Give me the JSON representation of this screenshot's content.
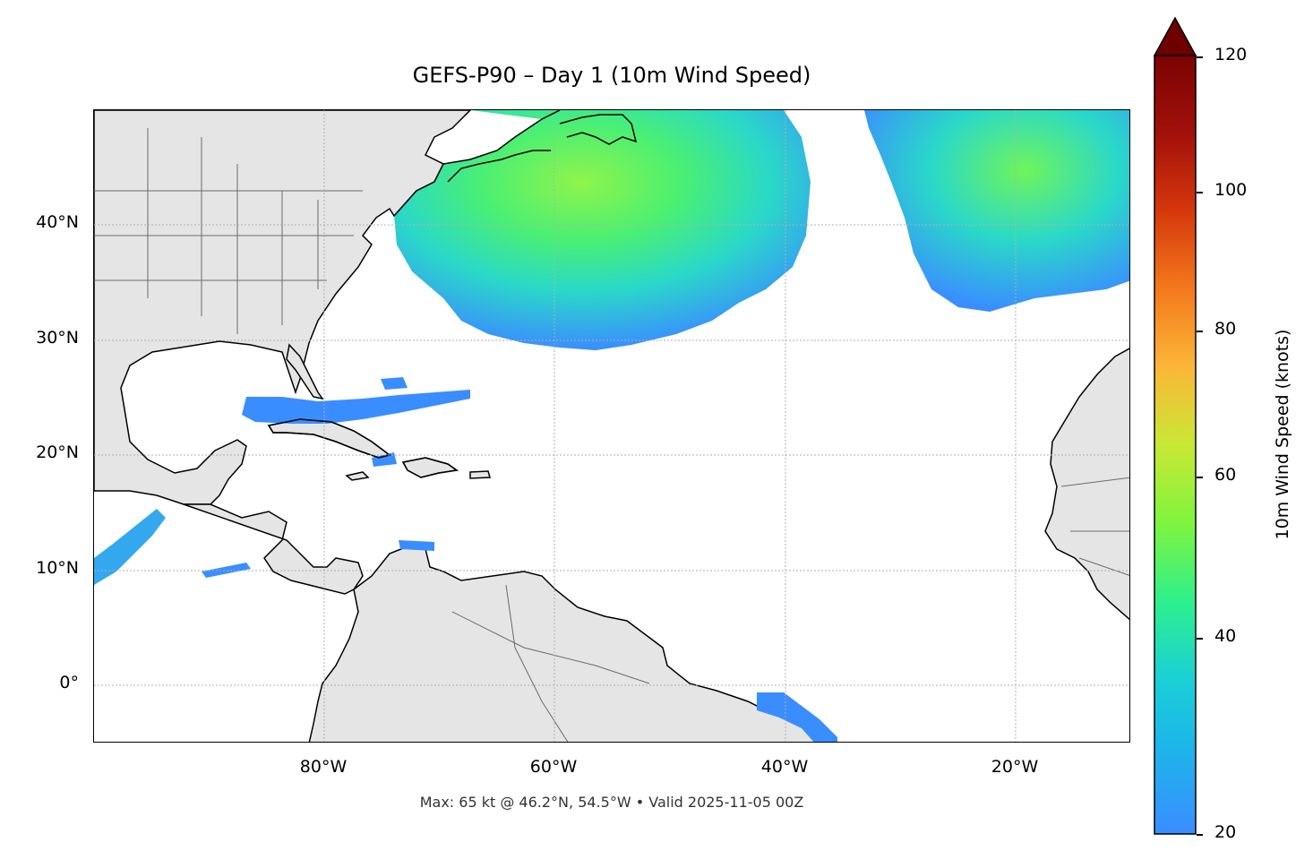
{
  "title": "GEFS-P90 – Day 1 (10m Wind Speed)",
  "footer": "Max: 65 kt @ 46.2°N, 54.5°W • Valid 2025-11-05 00Z",
  "axes": {
    "lat_ticks": [
      "40°N",
      "30°N",
      "20°N",
      "10°N",
      "0°"
    ],
    "lon_ticks": [
      "80°W",
      "60°W",
      "40°W",
      "20°W"
    ],
    "lon_range": [
      -100,
      -10
    ],
    "lat_range": [
      -5,
      50
    ],
    "gridlines": true
  },
  "colorbar": {
    "label": "10m Wind Speed (knots)",
    "ticks": [
      "20",
      "40",
      "60",
      "80",
      "100",
      "120"
    ],
    "range": [
      20,
      120
    ],
    "extend": "max",
    "colormap": [
      "#3a8dff",
      "#1bd0d5",
      "#2ef08a",
      "#a8f53a",
      "#e3d738",
      "#fca636",
      "#e84c14",
      "#a3100a",
      "#6e0000"
    ]
  },
  "land_color": "#e5e5e5",
  "max_wind": {
    "value_kt": 65,
    "lat": 46.2,
    "lon": -54.5
  }
}
